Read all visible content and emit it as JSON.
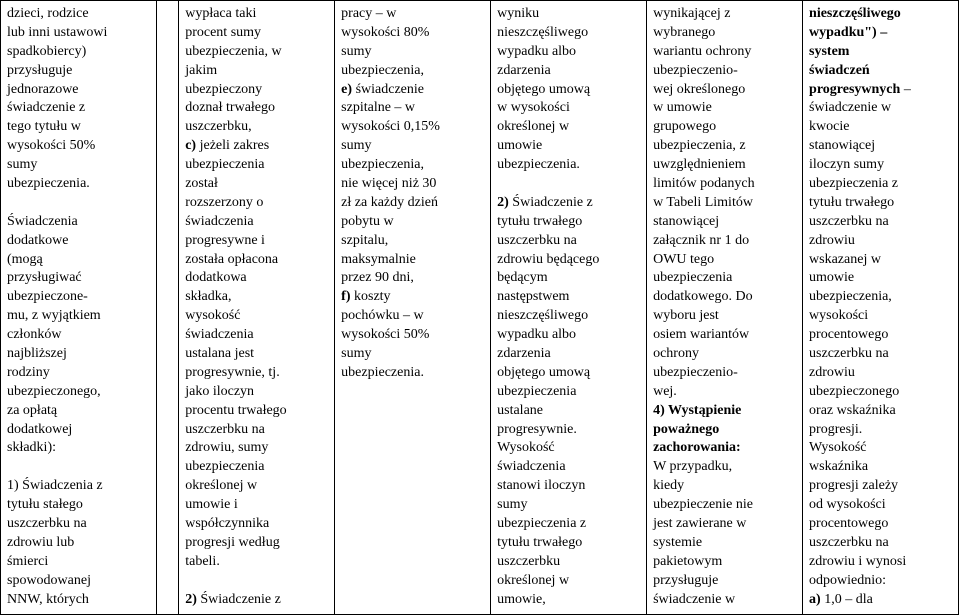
{
  "columns": [
    {
      "lines": [
        {
          "t": "dzieci, rodzice"
        },
        {
          "t": "lub inni ustawowi"
        },
        {
          "t": "spadkobiercy)"
        },
        {
          "t": "przysługuje"
        },
        {
          "t": "jednorazowe"
        },
        {
          "t": "świadczenie z"
        },
        {
          "t": "tego tytułu w"
        },
        {
          "t": "wysokości 50%"
        },
        {
          "t": "sumy"
        },
        {
          "t": "ubezpieczenia."
        },
        {
          "t": ""
        },
        {
          "t": "Świadczenia"
        },
        {
          "t": "dodatkowe"
        },
        {
          "t": "(mogą"
        },
        {
          "t": "przysługiwać"
        },
        {
          "t": "ubezpieczone-"
        },
        {
          "t": "mu, z wyjątkiem"
        },
        {
          "t": "członków"
        },
        {
          "t": "najbliższej"
        },
        {
          "t": "rodziny"
        },
        {
          "t": "ubezpieczonego,"
        },
        {
          "t": "za opłatą"
        },
        {
          "t": "dodatkowej"
        },
        {
          "t": "składki):"
        },
        {
          "t": ""
        },
        {
          "t": "1) Świadczenia z",
          "pre": "1) "
        },
        {
          "t": "tytułu stałego"
        },
        {
          "t": "uszczerbku na"
        },
        {
          "t": "zdrowiu lub"
        },
        {
          "t": "śmierci"
        },
        {
          "t": "spowodowanej"
        },
        {
          "t": "NNW, których"
        }
      ]
    },
    {
      "lines": []
    },
    {
      "lines": [
        {
          "t": "wypłaca taki"
        },
        {
          "t": "procent sumy"
        },
        {
          "t": "ubezpieczenia, w"
        },
        {
          "t": "jakim"
        },
        {
          "t": "ubezpieczony"
        },
        {
          "t": "doznał trwałego"
        },
        {
          "t": "uszczerbku,"
        },
        {
          "t": "c) jeżeli zakres",
          "boldPart": "c)",
          "rest": " jeżeli zakres"
        },
        {
          "t": "ubezpieczenia"
        },
        {
          "t": "został"
        },
        {
          "t": "rozszerzony o"
        },
        {
          "t": "świadczenia"
        },
        {
          "t": "progresywne i"
        },
        {
          "t": "została opłacona"
        },
        {
          "t": "dodatkowa"
        },
        {
          "t": "składka,"
        },
        {
          "t": "wysokość"
        },
        {
          "t": "świadczenia"
        },
        {
          "t": "ustalana jest"
        },
        {
          "t": "progresywnie, tj."
        },
        {
          "t": "jako iloczyn"
        },
        {
          "t": "procentu trwałego"
        },
        {
          "t": "uszczerbku na"
        },
        {
          "t": "zdrowiu, sumy"
        },
        {
          "t": "ubezpieczenia"
        },
        {
          "t": "określonej w"
        },
        {
          "t": "umowie i"
        },
        {
          "t": "współczynnika"
        },
        {
          "t": "progresji według"
        },
        {
          "t": "tabeli."
        },
        {
          "t": ""
        },
        {
          "t": "2) Świadczenie z",
          "boldPart": "2)",
          "rest": " Świadczenie z"
        }
      ]
    },
    {
      "lines": [
        {
          "t": "pracy – w"
        },
        {
          "t": "wysokości 80%"
        },
        {
          "t": "sumy"
        },
        {
          "t": "ubezpieczenia,"
        },
        {
          "t": "e) świadczenie",
          "boldPart": "e)",
          "rest": " świadczenie"
        },
        {
          "t": "szpitalne – w"
        },
        {
          "t": "wysokości 0,15%"
        },
        {
          "t": "sumy"
        },
        {
          "t": "ubezpieczenia,"
        },
        {
          "t": "nie więcej niż 30"
        },
        {
          "t": "zł za każdy dzień"
        },
        {
          "t": "pobytu w"
        },
        {
          "t": "szpitalu,"
        },
        {
          "t": "maksymalnie"
        },
        {
          "t": "przez 90 dni,"
        },
        {
          "t": "f) koszty",
          "boldPart": "f)",
          "rest": " koszty"
        },
        {
          "t": "pochówku – w"
        },
        {
          "t": "wysokości 50%"
        },
        {
          "t": "sumy"
        },
        {
          "t": "ubezpieczenia."
        }
      ]
    },
    {
      "lines": [
        {
          "t": "wyniku"
        },
        {
          "t": "nieszczęśliwego"
        },
        {
          "t": "wypadku albo"
        },
        {
          "t": "zdarzenia"
        },
        {
          "t": "objętego umową"
        },
        {
          "t": "w wysokości"
        },
        {
          "t": "określonej w"
        },
        {
          "t": "umowie"
        },
        {
          "t": "ubezpieczenia."
        },
        {
          "t": ""
        },
        {
          "t": "2) Świadczenie z",
          "boldPart": "2)",
          "rest": " Świadczenie z"
        },
        {
          "t": "tytułu trwałego"
        },
        {
          "t": "uszczerbku na"
        },
        {
          "t": "zdrowiu będącego"
        },
        {
          "t": "będącym"
        },
        {
          "t": "następstwem"
        },
        {
          "t": "nieszczęśliwego"
        },
        {
          "t": "wypadku albo"
        },
        {
          "t": "zdarzenia"
        },
        {
          "t": "objętego umową"
        },
        {
          "t": "ubezpieczenia"
        },
        {
          "t": "ustalane"
        },
        {
          "t": "progresywnie."
        },
        {
          "t": "Wysokość"
        },
        {
          "t": "świadczenia"
        },
        {
          "t": "stanowi iloczyn"
        },
        {
          "t": "sumy"
        },
        {
          "t": "ubezpieczenia z"
        },
        {
          "t": "tytułu trwałego"
        },
        {
          "t": "uszczerbku"
        },
        {
          "t": "określonej w"
        },
        {
          "t": "umowie,"
        }
      ]
    },
    {
      "lines": [
        {
          "t": "wynikającej z"
        },
        {
          "t": "wybranego"
        },
        {
          "t": "wariantu ochrony"
        },
        {
          "t": "ubezpieczenio-"
        },
        {
          "t": "wej określonego"
        },
        {
          "t": "w umowie"
        },
        {
          "t": "grupowego"
        },
        {
          "t": "ubezpieczenia, z"
        },
        {
          "t": "uwzględnieniem"
        },
        {
          "t": "limitów podanych"
        },
        {
          "t": "w Tabeli Limitów"
        },
        {
          "t": "stanowiącej"
        },
        {
          "t": "załącznik nr 1 do"
        },
        {
          "t": "OWU tego"
        },
        {
          "t": "ubezpieczenia"
        },
        {
          "t": "dodatkowego. Do"
        },
        {
          "t": "wyboru jest"
        },
        {
          "t": "osiem wariantów"
        },
        {
          "t": "ochrony"
        },
        {
          "t": "ubezpieczenio-"
        },
        {
          "t": "wej."
        },
        {
          "t": "4) Wystąpienie",
          "bold": true
        },
        {
          "t": "poważnego",
          "bold": true
        },
        {
          "t": "zachorowania:",
          "bold": true
        },
        {
          "t": "W przypadku,"
        },
        {
          "t": "kiedy"
        },
        {
          "t": "ubezpieczenie nie"
        },
        {
          "t": "jest zawierane w"
        },
        {
          "t": "systemie"
        },
        {
          "t": "pakietowym"
        },
        {
          "t": "przysługuje"
        },
        {
          "t": "świadczenie w"
        }
      ]
    },
    {
      "lines": [
        {
          "t": "nieszczęśliwego",
          "bold": true
        },
        {
          "t": "wypadku\") –",
          "bold": true
        },
        {
          "t": "system",
          "bold": true
        },
        {
          "t": "świadczeń",
          "bold": true
        },
        {
          "t": "progresywnych –",
          "boldPart": "progresywnych",
          "rest": " –"
        },
        {
          "t": "świadczenie w"
        },
        {
          "t": "kwocie"
        },
        {
          "t": "stanowiącej"
        },
        {
          "t": "iloczyn sumy"
        },
        {
          "t": "ubezpieczenia z"
        },
        {
          "t": "tytułu trwałego"
        },
        {
          "t": "uszczerbku na"
        },
        {
          "t": "zdrowiu"
        },
        {
          "t": "wskazanej w"
        },
        {
          "t": "umowie"
        },
        {
          "t": "ubezpieczenia,"
        },
        {
          "t": "wysokości"
        },
        {
          "t": "procentowego"
        },
        {
          "t": "uszczerbku na"
        },
        {
          "t": "zdrowiu"
        },
        {
          "t": "ubezpieczonego"
        },
        {
          "t": "oraz wskaźnika"
        },
        {
          "t": "progresji."
        },
        {
          "t": "Wysokość"
        },
        {
          "t": "wskaźnika"
        },
        {
          "t": "progresji zależy"
        },
        {
          "t": "od wysokości"
        },
        {
          "t": "procentowego"
        },
        {
          "t": "uszczerbku na"
        },
        {
          "t": "zdrowiu i wynosi"
        },
        {
          "t": "odpowiednio:"
        },
        {
          "t": "a) 1,0 – dla",
          "boldPart": "a)",
          "rest": " 1,0 – dla"
        }
      ]
    }
  ],
  "colWidths": [
    "14%",
    "2%",
    "14%",
    "14%",
    "14%",
    "14%",
    "14%"
  ],
  "style": {
    "background": "#ffffff",
    "font": "Times New Roman",
    "fontsize": 14,
    "border": "#000000"
  }
}
